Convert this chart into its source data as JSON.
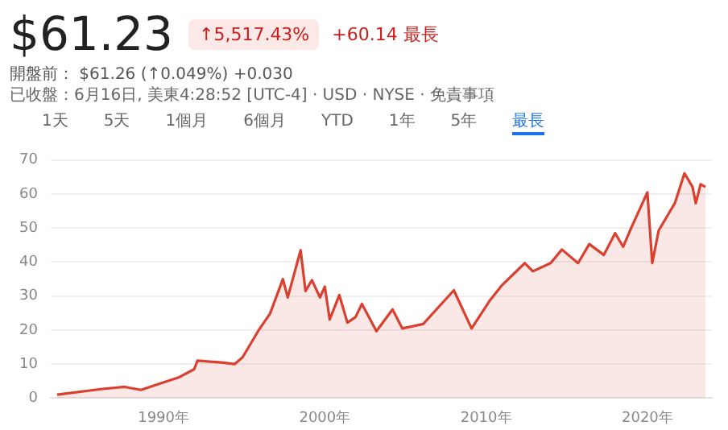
{
  "chart_data": {
    "type": "area",
    "title": "$61.23",
    "annotations": [
      "↑5,517.43%",
      "+60.14 最長",
      "開盤前： $61.26 (↑0.049%) +0.030",
      "已收盤：6月16日, 美東4:28:52 [UTC-4] · USD · NYSE · 免責事項",
      "1天",
      "5天",
      "1個月",
      "6個月",
      "YTD",
      "1年",
      "5年",
      "最長"
    ],
    "x": [
      1983.4,
      1986.2,
      1987.6,
      1988.6,
      1989.9,
      1990.9,
      1991.9,
      1992.1,
      1993.6,
      1994.4,
      1994.9,
      1995.9,
      1996.6,
      1997.4,
      1997.7,
      1998.5,
      1998.8,
      1999.2,
      1999.7,
      2000.0,
      2000.3,
      2000.9,
      2001.4,
      2001.9,
      2002.3,
      2003.2,
      2004.2,
      2004.8,
      2006.1,
      2008.0,
      2009.1,
      2010.2,
      2011.0,
      2012.4,
      2012.9,
      2014.0,
      2014.7,
      2015.7,
      2016.4,
      2017.3,
      2018.0,
      2018.5,
      2019.0,
      2020.0,
      2020.3,
      2020.7,
      2021.7,
      2022.3,
      2022.8,
      2023.0,
      2023.3,
      2023.6
    ],
    "series": [
      {
        "color": "#d9402f",
        "values": [
          1,
          2.7,
          3.3,
          2.4,
          4.5,
          6,
          8.5,
          11,
          10.5,
          10,
          12,
          20,
          24.8,
          35,
          29.6,
          43.5,
          31.5,
          34.7,
          29.6,
          32.8,
          23.1,
          30.3,
          22.2,
          23.8,
          27.7,
          19.7,
          26.1,
          20.5,
          21.8,
          31.7,
          20.5,
          28.5,
          33.3,
          39.7,
          37.3,
          39.7,
          43.7,
          39.7,
          45.3,
          42.1,
          48.5,
          44.5,
          50.1,
          60.5,
          39.7,
          49.3,
          57.3,
          66.1,
          62.1,
          57.3,
          62.9,
          62.1
        ]
      }
    ],
    "xlim": [
      1983,
      2024
    ],
    "xticks": [
      {
        "value": 1990,
        "label": "1990年"
      },
      {
        "value": 2000,
        "label": "2000年"
      },
      {
        "value": 2010,
        "label": "2010年"
      },
      {
        "value": 2020,
        "label": "2020年"
      }
    ],
    "ylim": [
      0,
      70
    ],
    "yticks": [
      0,
      10,
      20,
      30,
      40,
      50,
      60,
      70
    ],
    "grid": "y",
    "legend": false
  }
}
